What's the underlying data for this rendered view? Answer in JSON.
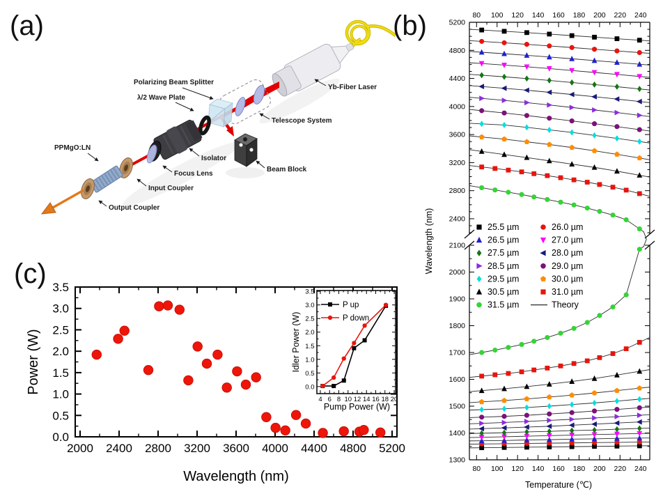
{
  "figure": {
    "panel_letters": {
      "a": "(a)",
      "b": "(b)",
      "c": "(c)"
    }
  },
  "panel_a": {
    "labels": {
      "pbs": "Polarizing Beam Splitter",
      "hwp": "λ/2 Wave Plate",
      "laser": "Yb-Fiber Laser",
      "telescope": "Telescope System",
      "isolator": "Isolator",
      "beam_block": "Beam Block",
      "focus_lens": "Focus Lens",
      "input_coupler": "Input Coupler",
      "output_coupler": "Output Coupler",
      "crystal": "PPMgO:LN"
    }
  },
  "chart_data": [
    {
      "id": "panel-b",
      "type": "scatter",
      "xlabel": "Temperature (℃)",
      "ylabel": "Wavelength (nm)",
      "xlim": [
        73,
        249
      ],
      "x_ticks": [
        80,
        100,
        120,
        140,
        160,
        180,
        200,
        220,
        240
      ],
      "x_minor_step": 10,
      "y_axis_break": true,
      "y_upper": {
        "range": [
          2191,
          5200
        ],
        "ticks": [
          2400,
          2800,
          3200,
          3600,
          4000,
          4400,
          4800,
          5200
        ]
      },
      "y_lower": {
        "range": [
          1300,
          2100
        ],
        "ticks": [
          1300,
          1400,
          1500,
          1600,
          1700,
          1800,
          1900,
          2000,
          2100
        ]
      },
      "theory_legend": "Theory",
      "theory_color": "#2a2a2a",
      "series": [
        {
          "name": "25.5 µm",
          "marker": "square",
          "color": "#000000",
          "x": [
            85,
            107,
            129,
            151,
            173,
            195,
            217,
            239
          ],
          "idler": [
            5090,
            5072,
            5053,
            5032,
            5010,
            4988,
            4966,
            4945
          ],
          "signal": [
            1345,
            1346,
            1347,
            1348,
            1349,
            1350,
            1351,
            1352
          ]
        },
        {
          "name": "26.0 µm",
          "marker": "circle",
          "color": "#e8150d",
          "x": [
            85,
            107,
            129,
            151,
            173,
            195,
            217,
            239
          ],
          "idler": [
            4928,
            4908,
            4886,
            4863,
            4840,
            4816,
            4792,
            4768
          ],
          "signal": [
            1359,
            1360,
            1361,
            1362,
            1363,
            1364,
            1365,
            1366
          ]
        },
        {
          "name": "26.5 µm",
          "marker": "tri-up",
          "color": "#2020d0",
          "x": [
            85,
            107,
            129,
            151,
            173,
            195,
            217,
            239
          ],
          "idler": [
            4773,
            4752,
            4729,
            4705,
            4680,
            4654,
            4628,
            4602
          ],
          "signal": [
            1371,
            1372,
            1374,
            1375,
            1377,
            1378,
            1380,
            1381
          ]
        },
        {
          "name": "27.0 µm",
          "marker": "tri-down",
          "color": "#ff00ff",
          "x": [
            85,
            107,
            129,
            151,
            173,
            195,
            217,
            239
          ],
          "idler": [
            4612,
            4590,
            4566,
            4540,
            4513,
            4485,
            4457,
            4428
          ],
          "signal": [
            1384,
            1386,
            1388,
            1390,
            1392,
            1394,
            1396,
            1398
          ]
        },
        {
          "name": "27.5 µm",
          "marker": "diamond",
          "color": "#157515",
          "x": [
            85,
            107,
            129,
            151,
            173,
            195,
            217,
            239
          ],
          "idler": [
            4446,
            4423,
            4398,
            4371,
            4342,
            4312,
            4282,
            4250
          ],
          "signal": [
            1399,
            1401,
            1404,
            1406,
            1409,
            1411,
            1414,
            1417
          ]
        },
        {
          "name": "28.0 µm",
          "marker": "tri-left",
          "color": "#1a1a78",
          "x": [
            85,
            107,
            129,
            151,
            173,
            195,
            217,
            239
          ],
          "idler": [
            4285,
            4260,
            4232,
            4202,
            4171,
            4139,
            4106,
            4071
          ],
          "signal": [
            1416,
            1419,
            1422,
            1425,
            1429,
            1433,
            1437,
            1441
          ]
        },
        {
          "name": "28.5 µm",
          "marker": "tri-right",
          "color": "#8c2be0",
          "x": [
            85,
            107,
            129,
            151,
            173,
            195,
            217,
            239
          ],
          "idler": [
            4116,
            4087,
            4055,
            4021,
            3986,
            3950,
            3913,
            3874
          ],
          "signal": [
            1436,
            1439,
            1443,
            1447,
            1451,
            1456,
            1461,
            1466
          ]
        },
        {
          "name": "29.0 µm",
          "marker": "circle",
          "color": "#7a1278",
          "x": [
            85,
            107,
            129,
            151,
            173,
            195,
            217,
            239
          ],
          "idler": [
            3940,
            3907,
            3871,
            3833,
            3794,
            3754,
            3713,
            3670
          ],
          "signal": [
            1459,
            1462,
            1466,
            1471,
            1476,
            1482,
            1488,
            1494
          ]
        },
        {
          "name": "29.5 µm",
          "marker": "diamond",
          "color": "#00dede",
          "x": [
            85,
            107,
            129,
            151,
            173,
            195,
            217,
            239
          ],
          "idler": [
            3752,
            3736,
            3702,
            3666,
            3630,
            3588,
            3545,
            3500
          ],
          "signal": [
            1487,
            1490,
            1495,
            1500,
            1506,
            1512,
            1519,
            1526
          ]
        },
        {
          "name": "30.0 µm",
          "marker": "pentagon",
          "color": "#ff8c00",
          "x": [
            85,
            107,
            129,
            151,
            173,
            195,
            217,
            239
          ],
          "idler": [
            3565,
            3535,
            3496,
            3458,
            3415,
            3368,
            3318,
            3265
          ],
          "signal": [
            1516,
            1521,
            1527,
            1534,
            1541,
            1549,
            1558,
            1567
          ]
        },
        {
          "name": "30.5 µm",
          "marker": "tri-up",
          "color": "#000000",
          "x": [
            85,
            107,
            129,
            151,
            173,
            195,
            217,
            239
          ],
          "idler": [
            3360,
            3315,
            3272,
            3225,
            3178,
            3132,
            3078,
            3020
          ],
          "signal": [
            1558,
            1565,
            1573,
            1582,
            1592,
            1603,
            1616,
            1630
          ]
        },
        {
          "name": "31.0 µm",
          "marker": "square",
          "color": "#e8150d",
          "x": [
            85,
            98,
            111,
            124,
            136,
            149,
            162,
            175,
            188,
            200,
            213,
            226,
            239
          ],
          "idler": [
            3138,
            3116,
            3093,
            3068,
            3042,
            3014,
            2985,
            2954,
            2921,
            2888,
            2850,
            2808,
            2758
          ],
          "signal": [
            1612,
            1617,
            1622,
            1628,
            1635,
            1642,
            1650,
            1659,
            1669,
            1681,
            1696,
            1714,
            1738
          ]
        },
        {
          "name": "31.5 µm",
          "marker": "circle",
          "color": "#35d435",
          "join_branches": true,
          "x": [
            85,
            98,
            111,
            124,
            136,
            149,
            162,
            175,
            188,
            200,
            213,
            226,
            239
          ],
          "idler": [
            2842,
            2810,
            2778,
            2745,
            2710,
            2674,
            2636,
            2596,
            2552,
            2505,
            2452,
            2385,
            2255
          ],
          "signal": [
            1700,
            1709,
            1719,
            1730,
            1742,
            1756,
            1772,
            1790,
            1812,
            1838,
            1870,
            1915,
            2085
          ]
        }
      ]
    },
    {
      "id": "panel-c",
      "type": "scatter",
      "xlabel": "Wavelength (nm)",
      "ylabel": "Power (W)",
      "xlim": [
        1950,
        5250
      ],
      "ylim": [
        0,
        3.5
      ],
      "x_ticks": [
        2000,
        2400,
        2800,
        3200,
        3600,
        4000,
        4400,
        4800,
        5200
      ],
      "y_ticks": [
        0.0,
        0.5,
        1.0,
        1.5,
        2.0,
        2.5,
        3.0,
        3.5
      ],
      "marker_color": "#ee1509",
      "points": [
        [
          2170,
          1.92
        ],
        [
          2390,
          2.29
        ],
        [
          2455,
          2.48
        ],
        [
          2700,
          1.56
        ],
        [
          2810,
          3.05
        ],
        [
          2900,
          3.07
        ],
        [
          3020,
          2.97
        ],
        [
          3110,
          1.32
        ],
        [
          3205,
          2.11
        ],
        [
          3300,
          1.71
        ],
        [
          3410,
          1.92
        ],
        [
          3505,
          1.15
        ],
        [
          3610,
          1.53
        ],
        [
          3700,
          1.22
        ],
        [
          3805,
          1.39
        ],
        [
          3910,
          0.46
        ],
        [
          4005,
          0.21
        ],
        [
          4105,
          0.15
        ],
        [
          4215,
          0.51
        ],
        [
          4315,
          0.31
        ],
        [
          4490,
          0.09
        ],
        [
          4705,
          0.13
        ],
        [
          4865,
          0.12
        ],
        [
          4910,
          0.16
        ],
        [
          5080,
          0.1
        ]
      ]
    },
    {
      "id": "panel-c-inset",
      "type": "line",
      "xlabel": "Pump Power (W)",
      "ylabel": "Idler Power (W)",
      "xlim": [
        3.25,
        20.3
      ],
      "ylim": [
        -0.26,
        3.53
      ],
      "x_ticks": [
        4,
        6,
        8,
        10,
        12,
        14,
        16,
        18,
        20
      ],
      "y_ticks": [
        0.0,
        0.5,
        1.0,
        1.5,
        2.0,
        2.5,
        3.0,
        3.5
      ],
      "series": [
        {
          "name": "P up",
          "color": "#000000",
          "marker": "square",
          "points": [
            [
              4.5,
              0.02
            ],
            [
              6.9,
              0.02
            ],
            [
              9.1,
              0.22
            ],
            [
              11.3,
              1.41
            ],
            [
              13.6,
              1.7
            ],
            [
              18.2,
              2.97
            ]
          ]
        },
        {
          "name": "P down",
          "color": "#e8150d",
          "marker": "circle",
          "points": [
            [
              4.5,
              0.02
            ],
            [
              6.9,
              0.33
            ],
            [
              9.1,
              1.03
            ],
            [
              11.3,
              1.6
            ],
            [
              13.6,
              2.24
            ],
            [
              18.2,
              3.0
            ]
          ]
        }
      ]
    }
  ]
}
